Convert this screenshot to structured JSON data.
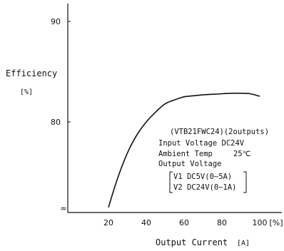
{
  "chart_data": {
    "type": "line",
    "ylabel": "Efficiency",
    "yunit": "[%]",
    "xlabel": "Output Current",
    "xunit": "[A]",
    "xunit_tick": "[%]",
    "xlim": [
      0,
      110
    ],
    "ylim": [
      71,
      92
    ],
    "xticks": [
      20,
      40,
      60,
      80,
      100
    ],
    "yticks": [
      80,
      90
    ],
    "grid": false,
    "axis_break_symbol": "≈",
    "series": [
      {
        "color": "#111111",
        "points": [
          [
            20,
            71.5
          ],
          [
            25,
            74.5
          ],
          [
            30,
            76.9
          ],
          [
            35,
            78.7
          ],
          [
            40,
            80.0
          ],
          [
            45,
            81.0
          ],
          [
            50,
            81.8
          ],
          [
            55,
            82.2
          ],
          [
            60,
            82.5
          ],
          [
            65,
            82.6
          ],
          [
            70,
            82.7
          ],
          [
            75,
            82.75
          ],
          [
            80,
            82.8
          ],
          [
            85,
            82.85
          ],
          [
            90,
            82.85
          ],
          [
            95,
            82.8
          ],
          [
            100,
            82.55
          ]
        ]
      }
    ],
    "annotations": {
      "model": "(VTB21FWC24)(2outputs)",
      "input_voltage": "Input Voltage  DC24V",
      "ambient_label": "Ambient Temp",
      "ambient_value": "25℃",
      "output_voltage": "Output Voltage",
      "v1": "V1 DC5V(0~5A)",
      "v2": "V2 DC24V(0~1A)"
    }
  }
}
